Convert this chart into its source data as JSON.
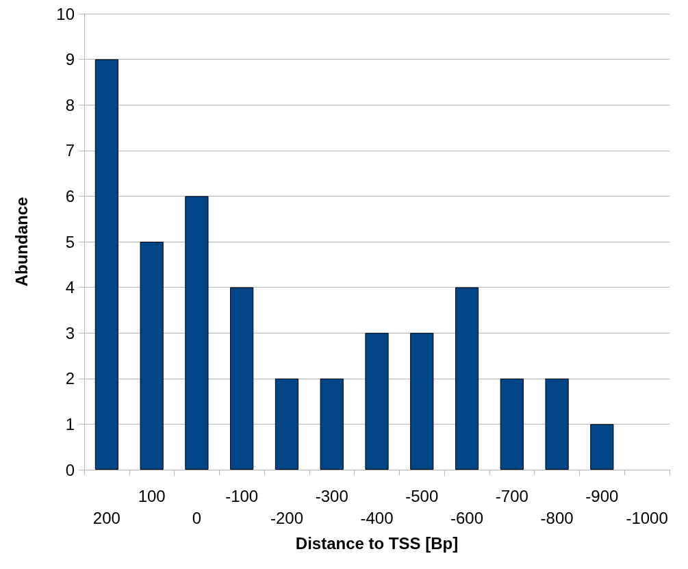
{
  "chart_data": {
    "type": "bar",
    "xlabel": "Distance to TSS [Bp]",
    "ylabel": "Abundance",
    "categories": [
      "200",
      "100",
      "0",
      "-100",
      "-200",
      "-300",
      "-400",
      "-500",
      "-600",
      "-700",
      "-800",
      "-900",
      "-1000"
    ],
    "values": [
      9,
      5,
      6,
      4,
      2,
      2,
      3,
      3,
      4,
      2,
      2,
      1,
      null
    ],
    "color": "#004586",
    "ylim": [
      0,
      10
    ],
    "yticks": [
      0,
      1,
      2,
      3,
      4,
      5,
      6,
      7,
      8,
      9,
      10
    ],
    "grid": "y"
  }
}
